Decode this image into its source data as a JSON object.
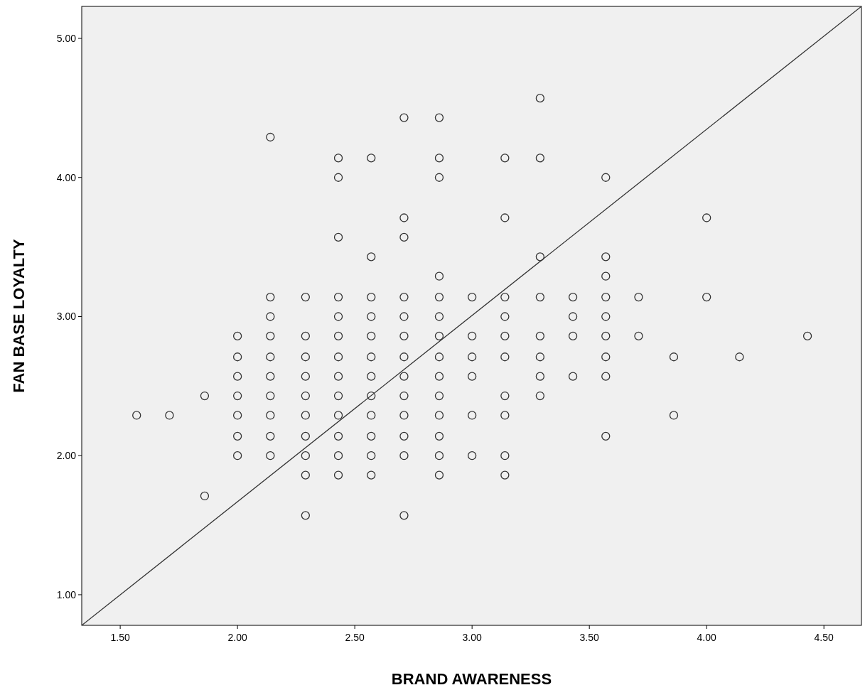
{
  "chart_data": {
    "type": "scatter",
    "xlabel": "BRAND AWARENESS",
    "ylabel": "FAN BASE LOYALTY",
    "xlim": [
      1.336,
      4.66
    ],
    "ylim": [
      0.78,
      5.23
    ],
    "xticks": [
      {
        "value": 1.5,
        "label": "1.50"
      },
      {
        "value": 2,
        "label": "2.00"
      },
      {
        "value": 2.5,
        "label": "2.50"
      },
      {
        "value": 3,
        "label": "3.00"
      },
      {
        "value": 3.5,
        "label": "3.50"
      },
      {
        "value": 4,
        "label": "4.00"
      },
      {
        "value": 4.5,
        "label": "4.50"
      }
    ],
    "yticks": [
      {
        "value": 1,
        "label": "1.00"
      },
      {
        "value": 2,
        "label": "2.00"
      },
      {
        "value": 3,
        "label": "3.00"
      },
      {
        "value": 4,
        "label": "4.00"
      },
      {
        "value": 5,
        "label": "5.00"
      }
    ],
    "grid": false,
    "marker": "circle",
    "series": [
      {
        "color": "#333333",
        "x": [
          1.57,
          1.71,
          1.86,
          1.86,
          2,
          2,
          2,
          2,
          2,
          2,
          2,
          2.14,
          2.14,
          2.14,
          2.14,
          2.14,
          2.14,
          2.14,
          2.14,
          2.14,
          2.14,
          2.29,
          2.29,
          2.29,
          2.29,
          2.29,
          2.29,
          2.29,
          2.29,
          2.29,
          2.29,
          2.43,
          2.43,
          2.43,
          2.43,
          2.43,
          2.43,
          2.43,
          2.43,
          2.43,
          2.43,
          2.43,
          2.43,
          2.43,
          2.57,
          2.57,
          2.57,
          2.57,
          2.57,
          2.57,
          2.57,
          2.57,
          2.57,
          2.57,
          2.57,
          2.57,
          2.71,
          2.71,
          2.71,
          2.71,
          2.71,
          2.71,
          2.71,
          2.71,
          2.71,
          2.71,
          2.71,
          2.71,
          2.71,
          2.86,
          2.86,
          2.86,
          2.86,
          2.86,
          2.86,
          2.86,
          2.86,
          2.86,
          2.86,
          2.86,
          2.86,
          2.86,
          2.86,
          3,
          3,
          3,
          3,
          3,
          3,
          3.14,
          3.14,
          3.14,
          3.14,
          3.14,
          3.14,
          3.14,
          3.14,
          3.14,
          3.14,
          3.29,
          3.29,
          3.29,
          3.29,
          3.29,
          3.29,
          3.29,
          3.29,
          3.43,
          3.43,
          3.43,
          3.43,
          3.57,
          3.57,
          3.57,
          3.57,
          3.57,
          3.57,
          3.57,
          3.57,
          3.57,
          3.71,
          3.71,
          3.86,
          3.86,
          4,
          4,
          4.14,
          4.43
        ],
        "values": [
          2.29,
          2.29,
          2.43,
          1.71,
          2.86,
          2.71,
          2.57,
          2.43,
          2.29,
          2.14,
          2,
          4.29,
          3.14,
          3,
          2.86,
          2.71,
          2.57,
          2.43,
          2.29,
          2.14,
          2,
          3.14,
          2.86,
          2.71,
          2.57,
          2.43,
          2.29,
          2.14,
          2,
          1.86,
          1.57,
          4.14,
          4,
          3.57,
          3.14,
          3,
          2.86,
          2.71,
          2.57,
          2.43,
          2.29,
          2.14,
          2,
          1.86,
          4.14,
          3.43,
          3.14,
          3,
          2.86,
          2.71,
          2.57,
          2.43,
          2.29,
          2.14,
          2,
          1.86,
          4.43,
          3.71,
          3.57,
          3.14,
          3,
          2.86,
          2.71,
          2.57,
          2.43,
          2.29,
          2.14,
          2,
          1.57,
          4.43,
          4.14,
          4,
          3.29,
          3.14,
          3,
          2.86,
          2.71,
          2.57,
          2.43,
          2.29,
          2.14,
          2,
          1.86,
          3.14,
          2.86,
          2.71,
          2.57,
          2.29,
          2,
          4.14,
          3.71,
          3.14,
          3,
          2.86,
          2.71,
          2.43,
          2.29,
          2,
          1.86,
          4.57,
          4.14,
          3.43,
          3.14,
          2.86,
          2.71,
          2.57,
          2.43,
          3.14,
          3,
          2.86,
          2.57,
          4,
          3.43,
          3.29,
          3.14,
          3,
          2.86,
          2.71,
          2.57,
          2.14,
          3.14,
          2.86,
          2.71,
          2.29,
          3.71,
          3.14,
          2.71,
          2.86
        ]
      },
      {
        "type": "line",
        "marker": "none",
        "color": "#333333",
        "x": [
          1.336,
          4.66
        ],
        "values": [
          0.78,
          5.23
        ]
      }
    ]
  }
}
